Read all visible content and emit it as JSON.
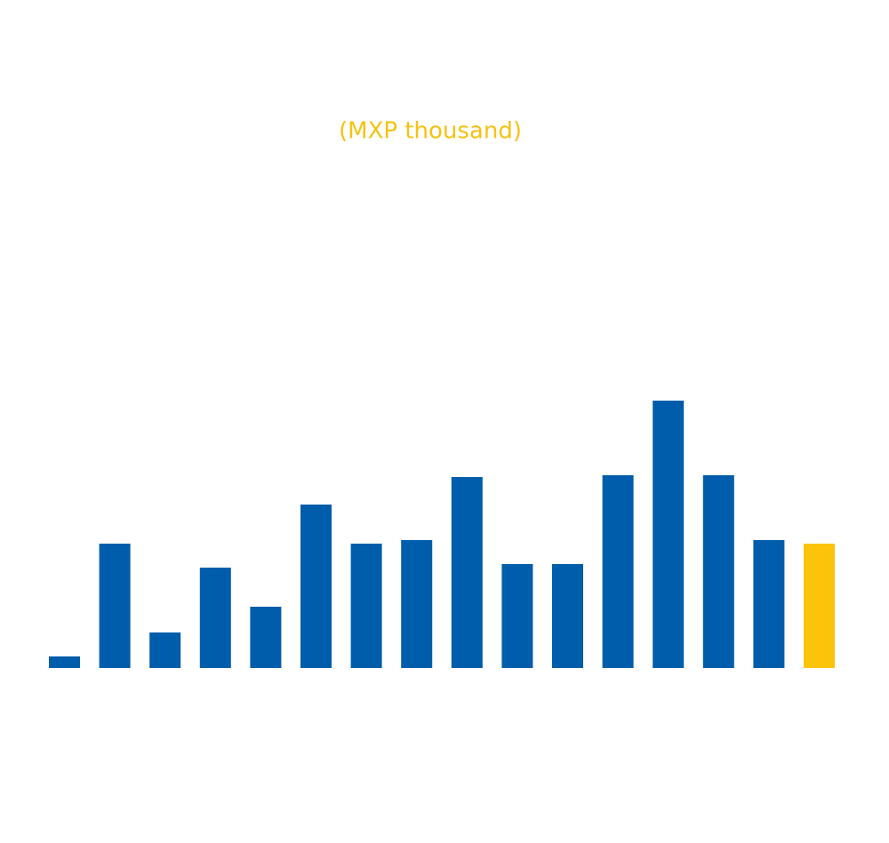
{
  "chart_data": {
    "type": "bar",
    "subtitle": "(MXP thousand)",
    "subtitle_color": "#f5c211",
    "values": [
      13,
      140,
      40,
      113,
      69,
      184,
      140,
      144,
      215,
      117,
      117,
      217,
      301,
      217,
      144,
      140
    ],
    "colors": [
      "#005dab",
      "#005dab",
      "#005dab",
      "#005dab",
      "#005dab",
      "#005dab",
      "#005dab",
      "#005dab",
      "#005dab",
      "#005dab",
      "#005dab",
      "#005dab",
      "#005dab",
      "#005dab",
      "#005dab",
      "#fcc30b"
    ]
  }
}
